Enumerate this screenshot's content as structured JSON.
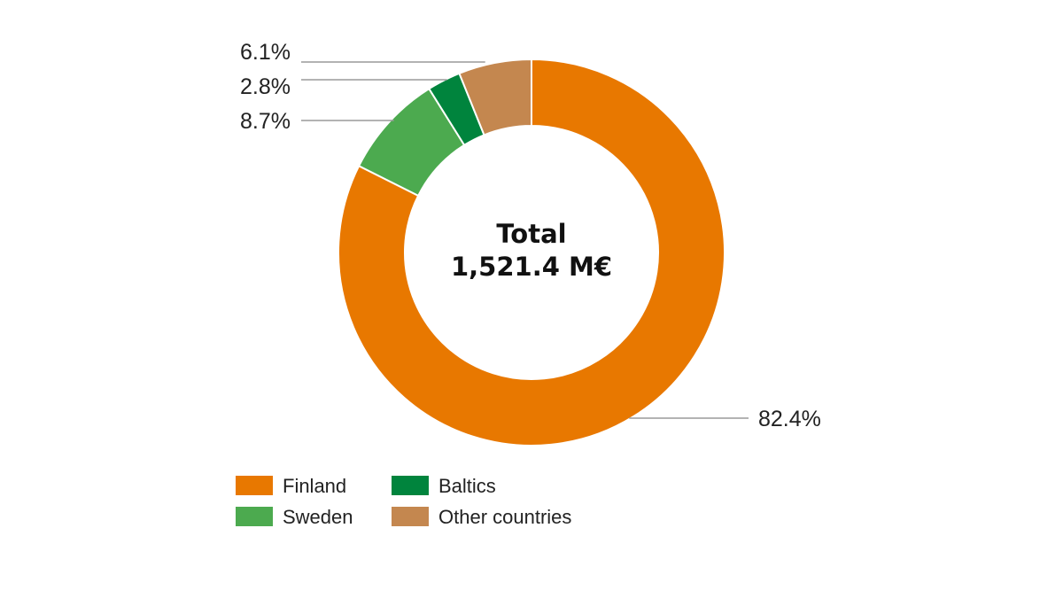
{
  "chart_data": {
    "type": "pie",
    "variant": "donut",
    "center_label": {
      "line1": "Total",
      "line2": "1,521.4 M€"
    },
    "slices": [
      {
        "name": "Finland",
        "value": 82.4,
        "label": "82.4%",
        "color": "#E87800"
      },
      {
        "name": "Sweden",
        "value": 8.7,
        "label": "8.7%",
        "color": "#4CAA4F"
      },
      {
        "name": "Baltics",
        "value": 2.8,
        "label": "2.8%",
        "color": "#00843D"
      },
      {
        "name": "Other countries",
        "value": 6.1,
        "label": "6.1%",
        "color": "#C4874F"
      }
    ],
    "legend_position": "bottom-left"
  }
}
